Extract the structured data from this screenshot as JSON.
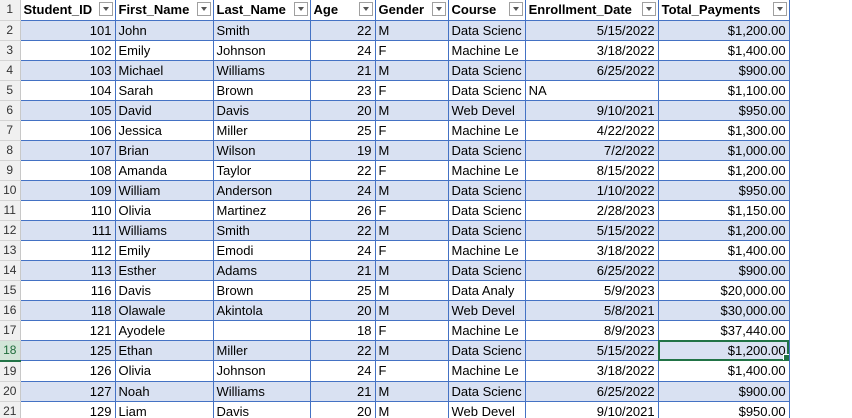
{
  "headers": [
    "Student_ID",
    "First_Name",
    "Last_Name",
    "Age",
    "Gender",
    "Course",
    "Enrollment_Date",
    "Total_Payments"
  ],
  "rows": [
    {
      "row": "2",
      "id": "101",
      "first": "John",
      "last": "Smith",
      "age": "22",
      "gender": "M",
      "course": "Data Scienc",
      "date": "5/15/2022",
      "pay": "$1,200.00"
    },
    {
      "row": "3",
      "id": "102",
      "first": "Emily",
      "last": "Johnson",
      "age": "24",
      "gender": "F",
      "course": "Machine Le",
      "date": "3/18/2022",
      "pay": "$1,400.00"
    },
    {
      "row": "4",
      "id": "103",
      "first": "Michael",
      "last": "Williams",
      "age": "21",
      "gender": "M",
      "course": "Data Scienc",
      "date": "6/25/2022",
      "pay": "$900.00"
    },
    {
      "row": "5",
      "id": "104",
      "first": "Sarah",
      "last": "Brown",
      "age": "23",
      "gender": "F",
      "course": "Data Scienc",
      "date": "NA",
      "pay": "$1,100.00"
    },
    {
      "row": "6",
      "id": "105",
      "first": "David",
      "last": "Davis",
      "age": "20",
      "gender": "M",
      "course": "Web Devel",
      "date": "9/10/2021",
      "pay": "$950.00"
    },
    {
      "row": "7",
      "id": "106",
      "first": "Jessica",
      "last": "Miller",
      "age": "25",
      "gender": "F",
      "course": "Machine Le",
      "date": "4/22/2022",
      "pay": "$1,300.00"
    },
    {
      "row": "8",
      "id": "107",
      "first": "Brian",
      "last": "Wilson",
      "age": "19",
      "gender": "M",
      "course": "Data Scienc",
      "date": "7/2/2022",
      "pay": "$1,000.00"
    },
    {
      "row": "9",
      "id": "108",
      "first": "Amanda",
      "last": "Taylor",
      "age": "22",
      "gender": "F",
      "course": "Machine Le",
      "date": "8/15/2022",
      "pay": "$1,200.00"
    },
    {
      "row": "10",
      "id": "109",
      "first": "William",
      "last": "Anderson",
      "age": "24",
      "gender": "M",
      "course": "Data Scienc",
      "date": "1/10/2022",
      "pay": "$950.00"
    },
    {
      "row": "11",
      "id": "110",
      "first": "Olivia",
      "last": "Martinez",
      "age": "26",
      "gender": "F",
      "course": "Data Scienc",
      "date": "2/28/2023",
      "pay": "$1,150.00"
    },
    {
      "row": "12",
      "id": "111",
      "first": "Williams",
      "last": "Smith",
      "age": "22",
      "gender": "M",
      "course": "Data Scienc",
      "date": "5/15/2022",
      "pay": "$1,200.00"
    },
    {
      "row": "13",
      "id": "112",
      "first": "Emily",
      "last": "Emodi",
      "age": "24",
      "gender": "F",
      "course": "Machine Le",
      "date": "3/18/2022",
      "pay": "$1,400.00"
    },
    {
      "row": "14",
      "id": "113",
      "first": "Esther",
      "last": "Adams",
      "age": "21",
      "gender": "M",
      "course": "Data Scienc",
      "date": "6/25/2022",
      "pay": "$900.00"
    },
    {
      "row": "15",
      "id": "116",
      "first": "Davis",
      "last": "Brown",
      "age": "25",
      "gender": "M",
      "course": "Data Analy",
      "date": "5/9/2023",
      "pay": "$20,000.00"
    },
    {
      "row": "16",
      "id": "118",
      "first": "Olawale",
      "last": "Akintola",
      "age": "20",
      "gender": "M",
      "course": "Web Devel",
      "date": "5/8/2021",
      "pay": "$30,000.00"
    },
    {
      "row": "17",
      "id": "121",
      "first": "Ayodele",
      "last": "",
      "age": "18",
      "gender": "F",
      "course": "Machine Le",
      "date": "8/9/2023",
      "pay": "$37,440.00"
    },
    {
      "row": "18",
      "id": "125",
      "first": "Ethan",
      "last": "Miller",
      "age": "22",
      "gender": "M",
      "course": "Data Scienc",
      "date": "5/15/2022",
      "pay": "$1,200.00"
    },
    {
      "row": "19",
      "id": "126",
      "first": "Olivia",
      "last": "Johnson",
      "age": "24",
      "gender": "F",
      "course": "Machine Le",
      "date": "3/18/2022",
      "pay": "$1,400.00"
    },
    {
      "row": "20",
      "id": "127",
      "first": "Noah",
      "last": "Williams",
      "age": "21",
      "gender": "M",
      "course": "Data Scienc",
      "date": "6/25/2022",
      "pay": "$900.00"
    },
    {
      "row": "21",
      "id": "129",
      "first": "Liam",
      "last": "Davis",
      "age": "20",
      "gender": "M",
      "course": "Web Devel",
      "date": "9/10/2021",
      "pay": "$950.00"
    }
  ],
  "header_row_number": "1",
  "selected_row": "18"
}
